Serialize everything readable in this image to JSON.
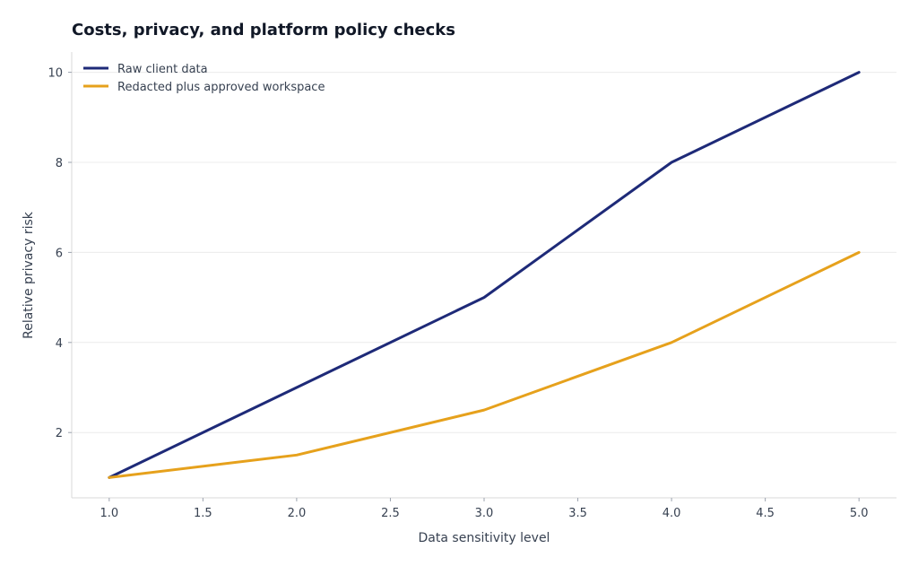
{
  "chart_data": {
    "type": "line",
    "title": "Costs, privacy, and platform policy checks",
    "xlabel": "Data sensitivity level",
    "ylabel": "Relative privacy risk",
    "xlim": [
      0.8,
      5.2
    ],
    "ylim": [
      0.55,
      10.45
    ],
    "xticks": [
      1.0,
      1.5,
      2.0,
      2.5,
      3.0,
      3.5,
      4.0,
      4.5,
      5.0
    ],
    "xtick_labels": [
      "1.0",
      "1.5",
      "2.0",
      "2.5",
      "3.0",
      "3.5",
      "4.0",
      "4.5",
      "5.0"
    ],
    "yticks": [
      2,
      4,
      6,
      8,
      10
    ],
    "ytick_labels": [
      "2",
      "4",
      "6",
      "8",
      "10"
    ],
    "grid": "horizontal",
    "legend_position": "top-left",
    "series": [
      {
        "name": "Raw client data",
        "color": "#1e2a78",
        "x": [
          1,
          2,
          3,
          4,
          5
        ],
        "values": [
          1,
          3,
          5,
          8,
          10
        ]
      },
      {
        "name": "Redacted plus approved workspace",
        "color": "#e6a11c",
        "x": [
          1,
          2,
          3,
          4,
          5
        ],
        "values": [
          1,
          1.5,
          2.5,
          4,
          6
        ]
      }
    ]
  }
}
